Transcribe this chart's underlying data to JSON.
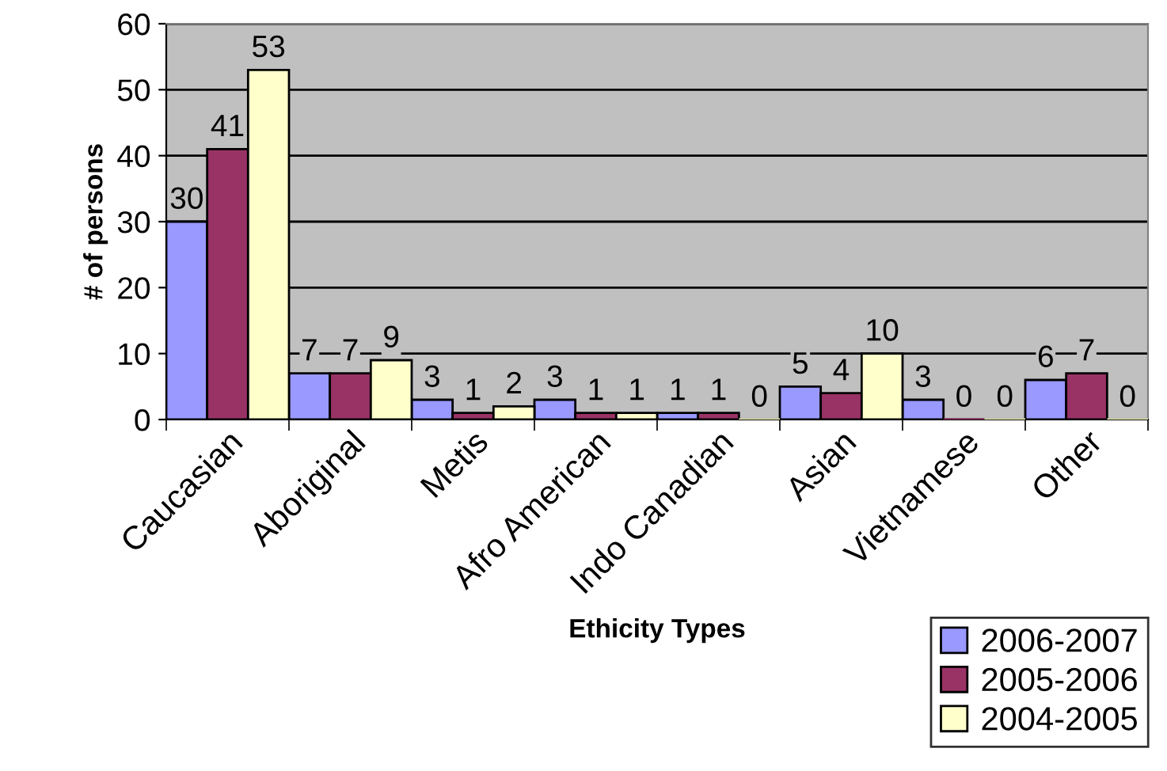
{
  "chart_data": {
    "type": "bar",
    "xlabel": "Ethicity Types",
    "ylabel": "# of persons",
    "categories": [
      "Caucasian",
      "Aboriginal",
      "Metis",
      "Afro American",
      "Indo Canadian",
      "Asian",
      "Vietnamese",
      "Other"
    ],
    "series": [
      {
        "name": "2006-2007",
        "color": "#9999ff",
        "values": [
          30,
          7,
          3,
          3,
          1,
          5,
          3,
          6
        ]
      },
      {
        "name": "2005-2006",
        "color": "#993366",
        "values": [
          41,
          7,
          1,
          1,
          1,
          4,
          0,
          7
        ]
      },
      {
        "name": "2004-2005",
        "color": "#ffffcc",
        "values": [
          53,
          9,
          2,
          1,
          0,
          10,
          0,
          0
        ]
      }
    ],
    "ylim": [
      0,
      60
    ],
    "yticks": [
      0,
      10,
      20,
      30,
      40,
      50,
      60
    ],
    "grid": "y",
    "legend": "bottom right",
    "data_labels": true
  }
}
